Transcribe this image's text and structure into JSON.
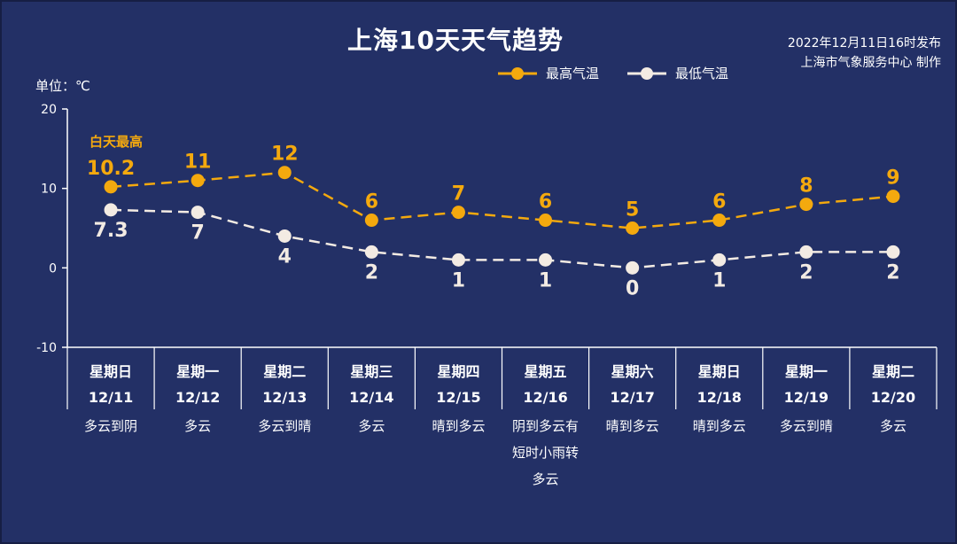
{
  "header": {
    "title": "上海10天天气趋势",
    "issued": "2022年12月11日16时发布",
    "producer": "上海市气象服务中心 制作"
  },
  "colors": {
    "background": "#233066",
    "high": "#f4a90e",
    "low": "#f3ebe3",
    "axis": "#ffffff"
  },
  "chart_data": {
    "type": "line",
    "unit_label": "单位：℃",
    "ylim": [
      -10,
      20
    ],
    "y_ticks": [
      "20",
      "10",
      "0",
      "-10"
    ],
    "y_tick_values": [
      20,
      10,
      0,
      -10
    ],
    "days": [
      {
        "weekday": "星期日",
        "date": "12/11",
        "weather": [
          "多云到阴"
        ]
      },
      {
        "weekday": "星期一",
        "date": "12/12",
        "weather": [
          "多云"
        ]
      },
      {
        "weekday": "星期二",
        "date": "12/13",
        "weather": [
          "多云到晴"
        ]
      },
      {
        "weekday": "星期三",
        "date": "12/14",
        "weather": [
          "多云"
        ]
      },
      {
        "weekday": "星期四",
        "date": "12/15",
        "weather": [
          "晴到多云"
        ]
      },
      {
        "weekday": "星期五",
        "date": "12/16",
        "weather": [
          "阴到多云有",
          "短时小雨转",
          "多云"
        ]
      },
      {
        "weekday": "星期六",
        "date": "12/17",
        "weather": [
          "晴到多云"
        ]
      },
      {
        "weekday": "星期日",
        "date": "12/18",
        "weather": [
          "晴到多云"
        ]
      },
      {
        "weekday": "星期一",
        "date": "12/19",
        "weather": [
          "多云到晴"
        ]
      },
      {
        "weekday": "星期二",
        "date": "12/20",
        "weather": [
          "多云"
        ]
      }
    ],
    "series": [
      {
        "name": "最高气温",
        "key": "high",
        "values": [
          10.2,
          11,
          12,
          6,
          7,
          6,
          5,
          6,
          8,
          9
        ],
        "labels": [
          "10.2",
          "11",
          "12",
          "6",
          "7",
          "6",
          "5",
          "6",
          "8",
          "9"
        ]
      },
      {
        "name": "最低气温",
        "key": "low",
        "values": [
          7.3,
          7,
          4,
          2,
          1,
          1,
          0,
          1,
          2,
          2
        ],
        "labels": [
          "7.3",
          "7",
          "4",
          "2",
          "1",
          "1",
          "0",
          "1",
          "2",
          "2"
        ]
      }
    ],
    "annotation": "白天最高",
    "legend": "top-right"
  }
}
